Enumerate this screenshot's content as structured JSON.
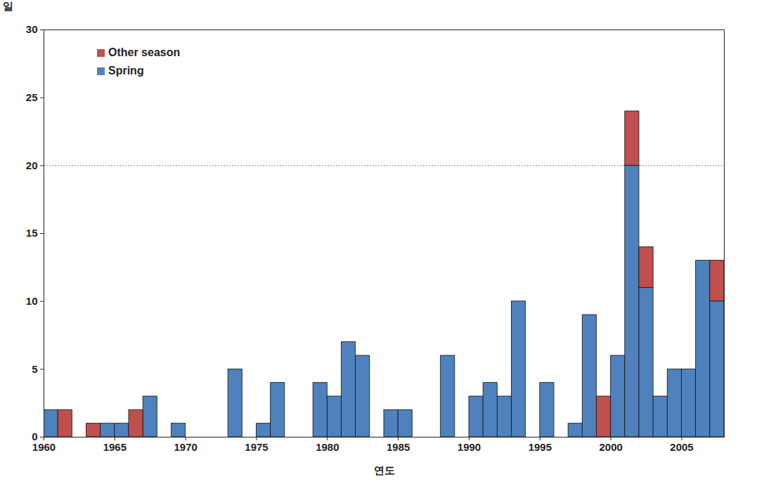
{
  "chart_data": {
    "type": "bar",
    "stacked": true,
    "ylabel": "일",
    "xlabel": "연도",
    "x": [
      1960,
      1961,
      1962,
      1963,
      1964,
      1965,
      1966,
      1967,
      1968,
      1969,
      1970,
      1971,
      1972,
      1973,
      1974,
      1975,
      1976,
      1977,
      1978,
      1979,
      1980,
      1981,
      1982,
      1983,
      1984,
      1985,
      1986,
      1987,
      1988,
      1989,
      1990,
      1991,
      1992,
      1993,
      1994,
      1995,
      1996,
      1997,
      1998,
      1999,
      2000,
      2001,
      2002,
      2003,
      2004,
      2005,
      2006,
      2007
    ],
    "series": [
      {
        "name": "Spring",
        "color": "#4f81bd",
        "values": [
          2,
          0,
          0,
          0,
          1,
          1,
          0,
          3,
          0,
          1,
          0,
          0,
          0,
          5,
          0,
          1,
          4,
          0,
          0,
          4,
          3,
          7,
          6,
          0,
          2,
          2,
          0,
          0,
          6,
          0,
          3,
          4,
          3,
          10,
          0,
          4,
          0,
          1,
          9,
          0,
          6,
          20,
          11,
          3,
          5,
          5,
          13,
          10
        ]
      },
      {
        "name": "Other season",
        "color": "#c0504d",
        "values": [
          0,
          2,
          0,
          1,
          0,
          0,
          2,
          0,
          0,
          0,
          0,
          0,
          0,
          0,
          0,
          0,
          0,
          0,
          0,
          0,
          0,
          0,
          0,
          0,
          0,
          0,
          0,
          0,
          0,
          0,
          0,
          0,
          0,
          0,
          0,
          0,
          0,
          0,
          0,
          3,
          0,
          4,
          3,
          0,
          0,
          0,
          0,
          3
        ]
      }
    ],
    "xlim": [
      1960,
      2008
    ],
    "xticks": [
      1960,
      1965,
      1970,
      1975,
      1980,
      1985,
      1990,
      1995,
      2000,
      2005
    ],
    "ylim": [
      0,
      30
    ],
    "yticks": [
      0,
      5,
      10,
      15,
      20,
      25,
      30
    ],
    "reference_lines": [
      20
    ],
    "legend": "top-left"
  }
}
